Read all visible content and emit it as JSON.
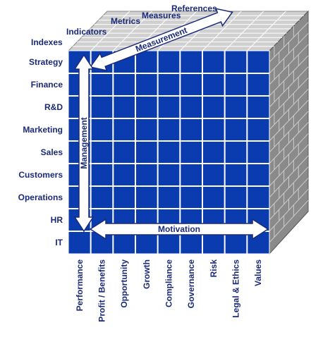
{
  "header": {
    "indexes": "Indexes",
    "indicators": "Indicators",
    "metrics": "Metrics",
    "measures": "Measures",
    "references": "References"
  },
  "rows": [
    "Strategy",
    "Finance",
    "R&D",
    "Marketing",
    "Sales",
    "Customers",
    "Operations",
    "HR",
    "IT"
  ],
  "columns": [
    "Performance",
    "Profit / Benefits",
    "Opportunity",
    "Growth",
    "Compliance",
    "Governance",
    "Risk",
    "Legal & Ethics",
    "Values"
  ],
  "arrows": {
    "measurement": "Measurement",
    "management": "Management",
    "motivation": "Motivation"
  }
}
